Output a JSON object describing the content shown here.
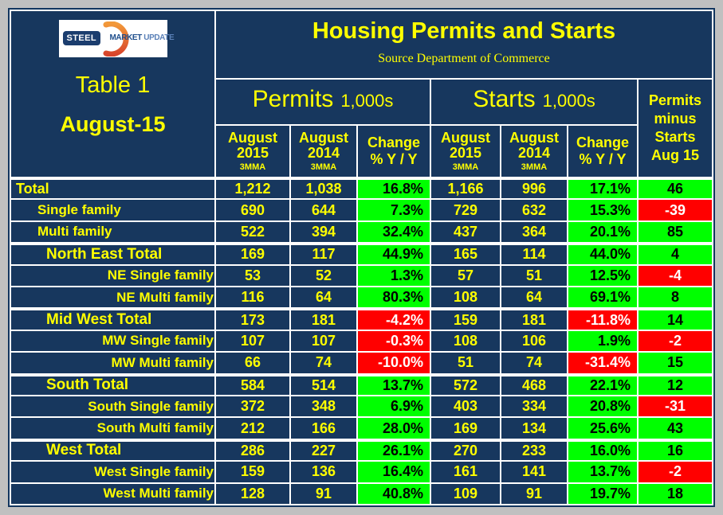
{
  "colors": {
    "page_background": "#c0c0c0",
    "table_navy": "#17375E",
    "text_yellow": "#FFFF00",
    "positive_green": "#00FF00",
    "negative_red": "#FF0000",
    "gridline_white": "#ffffff",
    "negative_text": "#ffffff",
    "positive_text": "#000000"
  },
  "header": {
    "logo": {
      "steel": "STEEL",
      "market": "MARKET",
      "update": "UPDATE"
    },
    "table_label": "Table 1",
    "date_label": "August-15",
    "title": "Housing Permits and Starts",
    "source": "Source Department of Commerce"
  },
  "columns": {
    "permits_group": {
      "label": "Permits",
      "unit": "1,000s"
    },
    "starts_group": {
      "label": "Starts",
      "unit": "1,000s"
    },
    "august2015": {
      "line1": "August",
      "line2": "2015",
      "line3": "3MMA"
    },
    "august2014": {
      "line1": "August",
      "line2": "2014",
      "line3": "3MMA"
    },
    "change": {
      "line1": "Change",
      "line2": "% Y / Y"
    },
    "permits_minus_starts": {
      "line1": "Permits",
      "line2": "minus",
      "line3": "Starts",
      "line4": "Aug 15"
    }
  },
  "chart_data": {
    "type": "table",
    "title": "Housing Permits and Starts",
    "source": "Source Department of Commerce",
    "period": "August-15",
    "column_headers": [
      "",
      "Permits August 2015 3MMA (1,000s)",
      "Permits August 2014 3MMA (1,000s)",
      "Permits Change % Y/Y",
      "Starts August 2015 3MMA (1,000s)",
      "Starts August 2014 3MMA (1,000s)",
      "Starts Change % Y/Y",
      "Permits minus Starts Aug 15"
    ],
    "rows": [
      {
        "label": "Total",
        "style": "total",
        "group_start": true,
        "p15": "1,212",
        "p14": "1,038",
        "pchg": "16.8%",
        "s15": "1,166",
        "s14": "996",
        "schg": "17.1%",
        "pms": "46"
      },
      {
        "label": "Single family",
        "style": "family",
        "group_start": false,
        "p15": "690",
        "p14": "644",
        "pchg": "7.3%",
        "s15": "729",
        "s14": "632",
        "schg": "15.3%",
        "pms": "-39"
      },
      {
        "label": "Multi family",
        "style": "family",
        "group_start": false,
        "p15": "522",
        "p14": "394",
        "pchg": "32.4%",
        "s15": "437",
        "s14": "364",
        "schg": "20.1%",
        "pms": "85"
      },
      {
        "label": "North East Total",
        "style": "region",
        "group_start": true,
        "p15": "169",
        "p14": "117",
        "pchg": "44.9%",
        "s15": "165",
        "s14": "114",
        "schg": "44.0%",
        "pms": "4"
      },
      {
        "label": "NE Single family",
        "style": "sub",
        "group_start": false,
        "p15": "53",
        "p14": "52",
        "pchg": "1.3%",
        "s15": "57",
        "s14": "51",
        "schg": "12.5%",
        "pms": "-4"
      },
      {
        "label": "NE Multi family",
        "style": "sub",
        "group_start": false,
        "p15": "116",
        "p14": "64",
        "pchg": "80.3%",
        "s15": "108",
        "s14": "64",
        "schg": "69.1%",
        "pms": "8"
      },
      {
        "label": "Mid West Total",
        "style": "region",
        "group_start": true,
        "p15": "173",
        "p14": "181",
        "pchg": "-4.2%",
        "s15": "159",
        "s14": "181",
        "schg": "-11.8%",
        "pms": "14"
      },
      {
        "label": "MW Single family",
        "style": "sub",
        "group_start": false,
        "p15": "107",
        "p14": "107",
        "pchg": "-0.3%",
        "s15": "108",
        "s14": "106",
        "schg": "1.9%",
        "pms": "-2"
      },
      {
        "label": "MW Multi family",
        "style": "sub",
        "group_start": false,
        "p15": "66",
        "p14": "74",
        "pchg": "-10.0%",
        "s15": "51",
        "s14": "74",
        "schg": "-31.4%",
        "pms": "15"
      },
      {
        "label": "South Total",
        "style": "region",
        "group_start": true,
        "p15": "584",
        "p14": "514",
        "pchg": "13.7%",
        "s15": "572",
        "s14": "468",
        "schg": "22.1%",
        "pms": "12"
      },
      {
        "label": "South Single family",
        "style": "sub",
        "group_start": false,
        "p15": "372",
        "p14": "348",
        "pchg": "6.9%",
        "s15": "403",
        "s14": "334",
        "schg": "20.8%",
        "pms": "-31"
      },
      {
        "label": "South Multi family",
        "style": "sub",
        "group_start": false,
        "p15": "212",
        "p14": "166",
        "pchg": "28.0%",
        "s15": "169",
        "s14": "134",
        "schg": "25.6%",
        "pms": "43"
      },
      {
        "label": "West Total",
        "style": "region",
        "group_start": true,
        "p15": "286",
        "p14": "227",
        "pchg": "26.1%",
        "s15": "270",
        "s14": "233",
        "schg": "16.0%",
        "pms": "16"
      },
      {
        "label": "West Single family",
        "style": "sub",
        "group_start": false,
        "p15": "159",
        "p14": "136",
        "pchg": "16.4%",
        "s15": "161",
        "s14": "141",
        "schg": "13.7%",
        "pms": "-2"
      },
      {
        "label": "West Multi family",
        "style": "sub",
        "group_start": false,
        "p15": "128",
        "p14": "91",
        "pchg": "40.8%",
        "s15": "109",
        "s14": "91",
        "schg": "19.7%",
        "pms": "18"
      }
    ]
  }
}
